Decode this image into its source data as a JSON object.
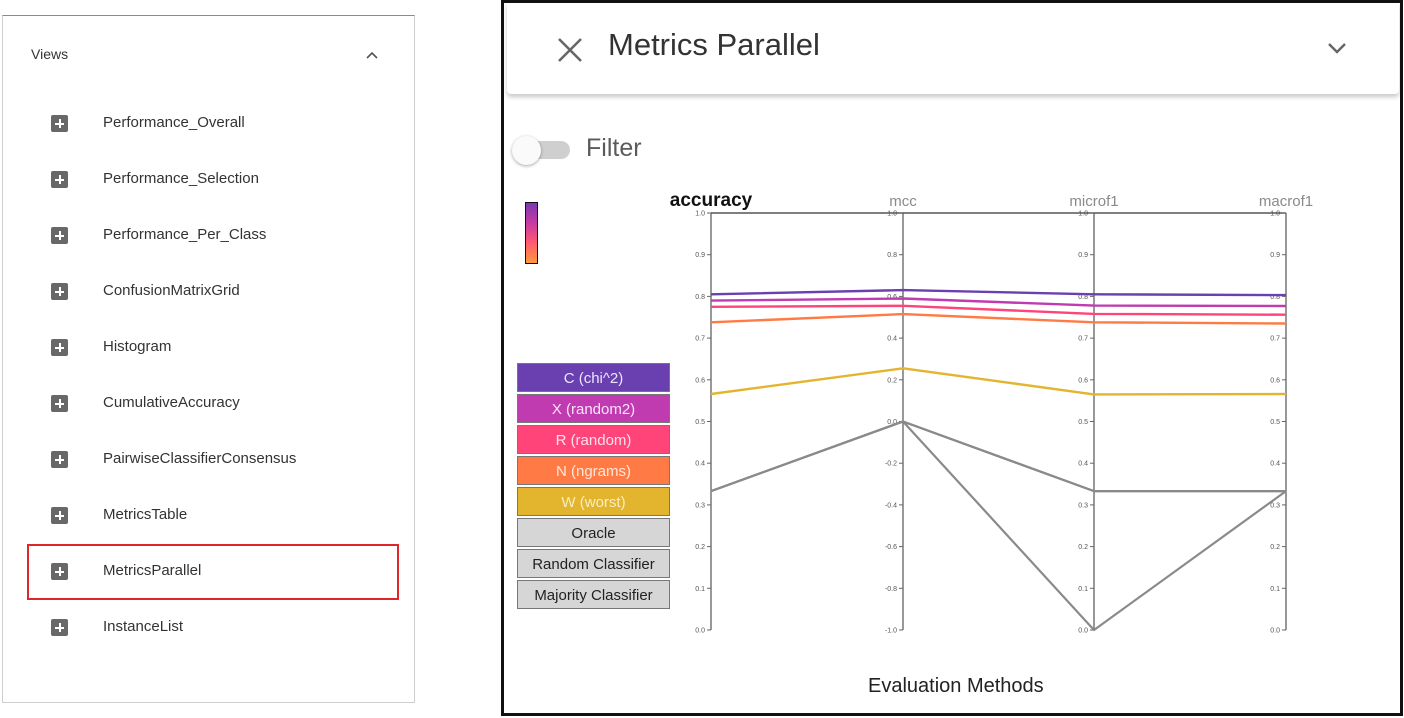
{
  "views": {
    "header": "Views",
    "items": [
      {
        "label": "Performance_Overall"
      },
      {
        "label": "Performance_Selection"
      },
      {
        "label": "Performance_Per_Class"
      },
      {
        "label": "ConfusionMatrixGrid"
      },
      {
        "label": "Histogram"
      },
      {
        "label": "CumulativeAccuracy"
      },
      {
        "label": "PairwiseClassifierConsensus"
      },
      {
        "label": "MetricsTable"
      },
      {
        "label": "MetricsParallel",
        "selected": true
      },
      {
        "label": "InstanceList"
      }
    ]
  },
  "panel": {
    "title": "Metrics Parallel",
    "filter_label": "Filter",
    "filter_on": false,
    "x_label": "Evaluation Methods"
  },
  "legend": [
    {
      "label": "C (chi^2)",
      "bg": "#6a3fb0",
      "fg": "#ece4ff"
    },
    {
      "label": "X (random2)",
      "bg": "#c03ab0",
      "fg": "#fde4fb"
    },
    {
      "label": "R (random)",
      "bg": "#ff4479",
      "fg": "#ffe0ea"
    },
    {
      "label": "N (ngrams)",
      "bg": "#ff7a45",
      "fg": "#ffe8d8"
    },
    {
      "label": "W (worst)",
      "bg": "#e3b52e",
      "fg": "#f9edc2"
    },
    {
      "label": "Oracle",
      "bg": "#d6d6d6",
      "fg": "#222222"
    },
    {
      "label": "Random Classifier",
      "bg": "#d6d6d6",
      "fg": "#222222"
    },
    {
      "label": "Majority Classifier",
      "bg": "#d6d6d6",
      "fg": "#222222"
    }
  ],
  "chart_data": {
    "type": "parallel_coordinates",
    "xlabel": "Evaluation Methods",
    "axes": [
      {
        "name": "accuracy",
        "range": [
          0.0,
          1.0
        ],
        "ticks": [
          "0.0",
          "0.1",
          "0.2",
          "0.3",
          "0.4",
          "0.5",
          "0.6",
          "0.7",
          "0.8",
          "0.9",
          "1.0"
        ],
        "active": true
      },
      {
        "name": "mcc",
        "range": [
          -1.0,
          1.0
        ],
        "ticks": [
          "-1.0",
          "-0.8",
          "-0.6",
          "-0.4",
          "-0.2",
          "0.0",
          "0.2",
          "0.4",
          "0.6",
          "0.8",
          "1.0"
        ]
      },
      {
        "name": "microf1",
        "range": [
          0.0,
          1.0
        ],
        "ticks": [
          "0.0",
          "0.1",
          "0.2",
          "0.3",
          "0.4",
          "0.5",
          "0.6",
          "0.7",
          "0.8",
          "0.9",
          "1.0"
        ]
      },
      {
        "name": "macrof1",
        "range": [
          0.0,
          1.0
        ],
        "ticks": [
          "0.0",
          "0.1",
          "0.2",
          "0.3",
          "0.4",
          "0.5",
          "0.6",
          "0.7",
          "0.8",
          "0.9",
          "1.0"
        ]
      }
    ],
    "series": [
      {
        "name": "C (chi^2)",
        "color": "#6a3fb0",
        "values": [
          0.805,
          0.63,
          0.805,
          0.803
        ]
      },
      {
        "name": "X (random2)",
        "color": "#c03ab0",
        "values": [
          0.79,
          0.59,
          0.778,
          0.777
        ]
      },
      {
        "name": "R (random)",
        "color": "#ff4479",
        "values": [
          0.775,
          0.555,
          0.758,
          0.756
        ]
      },
      {
        "name": "N (ngrams)",
        "color": "#ff7a45",
        "values": [
          0.738,
          0.515,
          0.738,
          0.735
        ]
      },
      {
        "name": "W (worst)",
        "color": "#e3b52e",
        "values": [
          0.566,
          0.255,
          0.565,
          0.566
        ]
      },
      {
        "name": "Oracle",
        "color": "#8a8a8a",
        "values": [
          0.333,
          0.0,
          0.333,
          0.333
        ]
      },
      {
        "name": "Random Classifier",
        "color": "#8a8a8a",
        "values": [
          0.333,
          0.0,
          0.0,
          0.333
        ]
      },
      {
        "name": "Majority Classifier",
        "color": "#8a8a8a",
        "values": [
          0.333,
          0.0,
          0.333,
          0.333
        ]
      }
    ]
  }
}
